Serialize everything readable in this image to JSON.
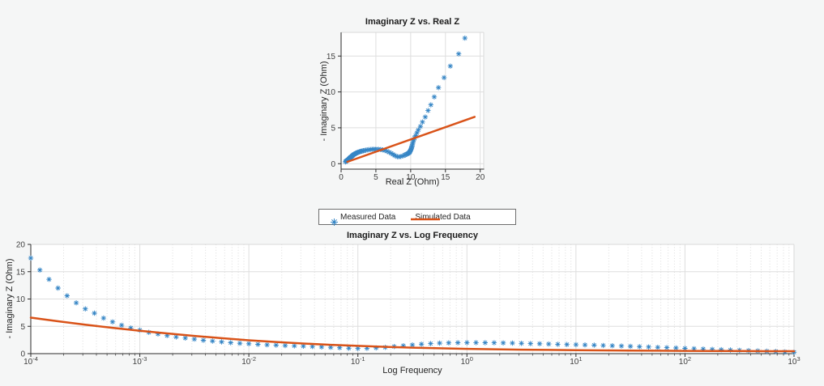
{
  "figure": {
    "background": "#F5F6F6"
  },
  "palette": {
    "measured_blue": "#3585C5",
    "simulated_orange": "#D95319",
    "plot_bg": "#FFFFFF",
    "grid_major": "#DEDEDE",
    "grid_minor": "#DCDCDC",
    "axis_dark": "#2B2B2B",
    "box_light": "#D9D9D9",
    "tick_text": "#3F3F3F"
  },
  "legend": {
    "position": "between-charts-centered",
    "entries": [
      {
        "label": "Measured Data",
        "marker": "asterisk"
      },
      {
        "label": "Simulated Data",
        "marker": "line"
      }
    ]
  },
  "chart_data": [
    {
      "type": "scatter",
      "title": "Imaginary Z vs. Real Z",
      "xlabel": "Real Z (Ohm)",
      "ylabel": "- Imaginary Z (Ohm)",
      "xscale": "linear",
      "xlim": [
        0,
        20.5
      ],
      "ylim": [
        -0.76,
        18.3
      ],
      "xticks": [
        0,
        5,
        10,
        15,
        20
      ],
      "yticks": [
        0,
        5,
        10,
        15
      ],
      "grid": true,
      "minor_grid": false,
      "series": [
        {
          "name": "Measured Data",
          "style": "markers",
          "marker": "asterisk",
          "colorKey": "measured_blue",
          "x": [
            17.8,
            16.9,
            15.7,
            14.8,
            14,
            13.4,
            12.9,
            12.5,
            12.1,
            11.7,
            11.4,
            11.1,
            10.9,
            10.7,
            10.55,
            10.45,
            10.35,
            10.3,
            10.25,
            10.2,
            10.15,
            10.1,
            10.05,
            10,
            9.95,
            9.9,
            9.85,
            9.8,
            9.7,
            9.6,
            9.5,
            9.35,
            9.2,
            9.05,
            8.85,
            8.6,
            8.3,
            8.1,
            7.9,
            7.7,
            7.45,
            7.2,
            6.9,
            6.6,
            6.3,
            6,
            5.7,
            5.35,
            5,
            4.7,
            4.45,
            4.2,
            3.95,
            3.75,
            3.55,
            3.35,
            3.2,
            3,
            2.85,
            2.7,
            2.6,
            2.45,
            2.35,
            2.25,
            2.15,
            2.05,
            1.95,
            1.85,
            1.75,
            1.7,
            1.6,
            1.55,
            1.45,
            1.38,
            1.3,
            1.24,
            1.18,
            1.12,
            1.06,
            1,
            0.93,
            0.86,
            0.78,
            0.7,
            0.62
          ],
          "y": [
            17.5,
            15.3,
            13.6,
            12,
            10.6,
            9.3,
            8.2,
            7.4,
            6.5,
            5.8,
            5.2,
            4.7,
            4.3,
            3.9,
            3.6,
            3.3,
            3.05,
            2.85,
            2.65,
            2.45,
            2.3,
            2.15,
            2,
            1.9,
            1.8,
            1.7,
            1.62,
            1.55,
            1.48,
            1.42,
            1.36,
            1.3,
            1.22,
            1.15,
            1.08,
            1,
            0.95,
            0.98,
            1.05,
            1.15,
            1.3,
            1.45,
            1.6,
            1.73,
            1.84,
            1.92,
            1.97,
            2,
            2.02,
            2.02,
            2,
            1.98,
            1.95,
            1.92,
            1.88,
            1.84,
            1.8,
            1.76,
            1.72,
            1.68,
            1.64,
            1.6,
            1.55,
            1.5,
            1.45,
            1.4,
            1.34,
            1.28,
            1.22,
            1.16,
            1.1,
            1.03,
            0.97,
            0.9,
            0.84,
            0.78,
            0.72,
            0.66,
            0.6,
            0.55,
            0.5,
            0.45,
            0.4,
            0.33,
            0.25
          ]
        },
        {
          "name": "Simulated Data",
          "style": "line",
          "colorKey": "simulated_orange",
          "x": [
            0.9,
            19.2
          ],
          "y": [
            0.25,
            6.53
          ]
        }
      ]
    },
    {
      "type": "scatter",
      "title": "Imaginary Z vs. Log Frequency",
      "xlabel": "Log Frequency",
      "ylabel": "- Imaginary Z (Ohm)",
      "xscale": "log10",
      "xlim": [
        -4,
        3
      ],
      "ylim": [
        0,
        20
      ],
      "xticks": [
        -4,
        -3,
        -2,
        -1,
        0,
        1,
        2,
        3
      ],
      "yticks": [
        0,
        5,
        10,
        15,
        20
      ],
      "grid": true,
      "minor_grid": true,
      "series": [
        {
          "name": "Measured Data",
          "style": "markers",
          "marker": "asterisk",
          "colorKey": "measured_blue",
          "x": [
            -4,
            -3.917,
            -3.833,
            -3.75,
            -3.667,
            -3.583,
            -3.5,
            -3.417,
            -3.333,
            -3.25,
            -3.167,
            -3.083,
            -3,
            -2.917,
            -2.833,
            -2.75,
            -2.667,
            -2.583,
            -2.5,
            -2.417,
            -2.333,
            -2.25,
            -2.167,
            -2.083,
            -2,
            -1.917,
            -1.833,
            -1.75,
            -1.667,
            -1.583,
            -1.5,
            -1.417,
            -1.333,
            -1.25,
            -1.167,
            -1.083,
            -1,
            -0.917,
            -0.833,
            -0.75,
            -0.667,
            -0.583,
            -0.5,
            -0.417,
            -0.333,
            -0.25,
            -0.167,
            -0.083,
            0,
            0.083,
            0.167,
            0.25,
            0.333,
            0.417,
            0.5,
            0.583,
            0.667,
            0.75,
            0.833,
            0.917,
            1,
            1.083,
            1.167,
            1.25,
            1.333,
            1.417,
            1.5,
            1.583,
            1.667,
            1.75,
            1.833,
            1.917,
            2,
            2.083,
            2.167,
            2.25,
            2.333,
            2.417,
            2.5,
            2.583,
            2.667,
            2.75,
            2.833,
            2.917,
            3
          ],
          "y": [
            17.5,
            15.3,
            13.6,
            12,
            10.6,
            9.3,
            8.2,
            7.4,
            6.5,
            5.8,
            5.2,
            4.7,
            4.3,
            3.9,
            3.6,
            3.3,
            3.05,
            2.85,
            2.65,
            2.45,
            2.3,
            2.15,
            2,
            1.9,
            1.8,
            1.7,
            1.62,
            1.55,
            1.48,
            1.42,
            1.36,
            1.3,
            1.22,
            1.15,
            1.08,
            1,
            0.95,
            0.98,
            1.05,
            1.15,
            1.3,
            1.45,
            1.6,
            1.73,
            1.84,
            1.92,
            1.97,
            2,
            2.02,
            2.02,
            2,
            1.98,
            1.95,
            1.92,
            1.88,
            1.84,
            1.8,
            1.76,
            1.72,
            1.68,
            1.64,
            1.6,
            1.55,
            1.5,
            1.45,
            1.4,
            1.34,
            1.28,
            1.22,
            1.16,
            1.1,
            1.03,
            0.97,
            0.9,
            0.84,
            0.78,
            0.72,
            0.66,
            0.6,
            0.55,
            0.5,
            0.45,
            0.4,
            0.33,
            0.25
          ]
        },
        {
          "name": "Simulated Data",
          "style": "line",
          "colorKey": "simulated_orange",
          "x": [
            -4,
            -3.75,
            -3.5,
            -3.25,
            -3,
            -2.75,
            -2.5,
            -2.25,
            -2,
            -1.75,
            -1.5,
            -1.25,
            -1,
            -0.75,
            -0.5,
            -0.25,
            0,
            0.25,
            0.5,
            0.75,
            1,
            1.25,
            1.5,
            1.75,
            2,
            2.25,
            2.5,
            2.75,
            3
          ],
          "y": [
            6.6,
            5.92,
            5.3,
            4.73,
            4.2,
            3.7,
            3.25,
            2.83,
            2.45,
            2.13,
            1.85,
            1.62,
            1.42,
            1.25,
            1.1,
            0.98,
            0.88,
            0.8,
            0.73,
            0.68,
            0.63,
            0.59,
            0.56,
            0.53,
            0.51,
            0.49,
            0.47,
            0.45,
            0.44
          ]
        }
      ]
    }
  ]
}
